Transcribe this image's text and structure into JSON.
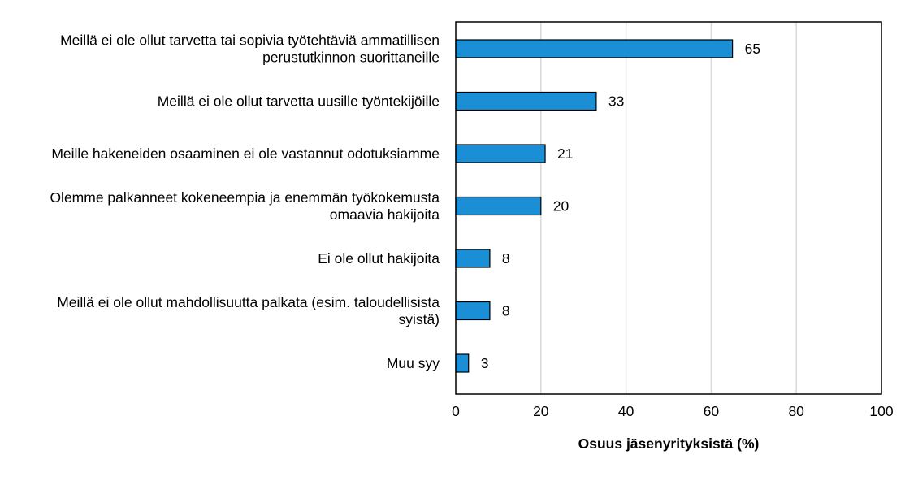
{
  "chart_data": {
    "type": "bar",
    "orientation": "horizontal",
    "categories": [
      [
        "Meillä ei ole ollut tarvetta tai sopivia työtehtäviä ammatillisen",
        "perustutkinnon suorittaneille"
      ],
      [
        "Meillä ei ole ollut tarvetta uusille työntekijöille"
      ],
      [
        "Meille hakeneiden osaaminen ei ole vastannut odotuksiamme"
      ],
      [
        "Olemme palkanneet kokeneempia ja enemmän työkokemusta",
        "omaavia hakijoita"
      ],
      [
        "Ei ole ollut hakijoita"
      ],
      [
        "Meillä ei ole ollut mahdollisuutta palkata (esim. taloudellisista",
        "syistä)"
      ],
      [
        "Muu syy"
      ]
    ],
    "values": [
      65,
      33,
      21,
      20,
      8,
      8,
      3
    ],
    "data_labels": [
      "65",
      "33",
      "21",
      "20",
      "8",
      "8",
      "3"
    ],
    "xlabel": "Osuus jäsenyrityksistä (%)",
    "ylabel": "",
    "xlim": [
      0,
      100
    ],
    "x_ticks": [
      0,
      20,
      40,
      60,
      80,
      100
    ],
    "x_tick_labels": [
      "0",
      "20",
      "40",
      "60",
      "80",
      "100"
    ],
    "grid": "vertical",
    "legend": "none",
    "colors": {
      "bar": "#1a8fd6",
      "bar_edge": "#000000",
      "grid": "#d9d9d9",
      "frame": "#000000"
    }
  }
}
